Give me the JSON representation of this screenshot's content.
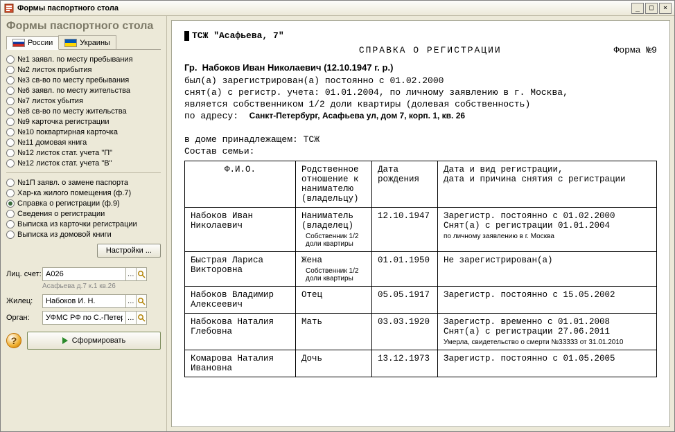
{
  "window": {
    "title": "Формы паспортного стола"
  },
  "sidebar": {
    "heading": "Формы паспортного стола",
    "tabs": [
      {
        "label": "России",
        "flag": "ru",
        "active": true
      },
      {
        "label": "Украины",
        "flag": "ua",
        "active": false
      }
    ],
    "forms1": [
      "№1  заявл. по месту пребывания",
      "№2  листок прибытия",
      "№3  св-во по месту пребывания",
      "№6  заявл. по месту жительства",
      "№7  листок убытия",
      "№8  св-во по месту жительства",
      "№9  карточка регистрации",
      "№10 поквартирная карточка",
      "№11 домовая книга",
      "№12 листок стат. учета \"П\"",
      "№12 листок стат. учета \"В\""
    ],
    "forms2": [
      {
        "label": "№1П  заявл. о замене паспорта",
        "checked": false
      },
      {
        "label": "Хар-ка жилого помещения (ф.7)",
        "checked": false
      },
      {
        "label": "Справка о регистрации (ф.9)",
        "checked": true
      },
      {
        "label": "Сведения о регистрации",
        "checked": false
      },
      {
        "label": "Выписка из карточки регистрации",
        "checked": false
      },
      {
        "label": "Выписка из домовой книги",
        "checked": false
      }
    ],
    "settings_btn": "Настройки ...",
    "fields": {
      "acct_label": "Лиц. счет:",
      "acct_value": "А026",
      "acct_hint": "Асафьева д.7 к.1 кв.26",
      "tenant_label": "Жилец:",
      "tenant_value": "Набоков И. Н.",
      "organ_label": "Орган:",
      "organ_value": "УФМС РФ по С.-Петер"
    },
    "submit_btn": "Сформировать"
  },
  "document": {
    "org": "ТСЖ \"Асафьева, 7\"",
    "title": "СПРАВКА О РЕГИСТРАЦИИ",
    "form_no": "Форма №9",
    "person_prefix": "Гр.",
    "person": "Набоков Иван Николаевич (12.10.1947 г. р.)",
    "line1": "был(а) зарегистрирован(а) постоянно с 01.02.2000",
    "line2": "снят(а) с регистр. учета: 01.01.2004, по личному заявлению в г. Москва,",
    "line3": "является собственником 1/2 доли квартиры (долевая собственность)",
    "addr_label": "по адресу:",
    "addr": "Санкт-Петербург, Асафьева ул, дом 7, корп. 1, кв. 26",
    "belong": "в доме принадлежащем:  ТСЖ",
    "family_label": "Состав семьи:",
    "columns": {
      "fio": "Ф.И.О.",
      "rel": "Родственное отношение к нанимателю (владельцу)",
      "dob": "Дата рождения",
      "reg": "Дата и вид регистрации,\nдата и причина снятия с регистрации"
    },
    "rows": [
      {
        "fio": "Набоков Иван Николаевич",
        "rel": "Наниматель (владелец)",
        "rel_sub": "Собственник 1/2 доли квартиры",
        "dob": "12.10.1947",
        "reg": "Зарегистр. постоянно с 01.02.2000\nСнят(а) с регистрации  01.01.2004",
        "reg_sub": "по личному заявлению в г. Москва"
      },
      {
        "fio": "Быстрая Лариса Викторовна",
        "rel": "Жена",
        "rel_sub": "Собственник 1/2 доли квартиры",
        "dob": "01.01.1950",
        "reg": "Не зарегистрирован(а)",
        "reg_sub": ""
      },
      {
        "fio": "Набоков Владимир Алексеевич",
        "rel": "Отец",
        "rel_sub": "",
        "dob": "05.05.1917",
        "reg": "Зарегистр. постоянно с 15.05.2002",
        "reg_sub": ""
      },
      {
        "fio": "Набокова Наталия Глебовна",
        "rel": "Мать",
        "rel_sub": "",
        "dob": "03.03.1920",
        "reg": "Зарегистр. временно с 01.01.2008\nСнят(а) с регистрации  27.06.2011",
        "reg_sub": "Умерла, свидетельство о смерти №33333 от 31.01.2010"
      },
      {
        "fio": "Комарова Наталия Ивановна",
        "rel": "Дочь",
        "rel_sub": "",
        "dob": "13.12.1973",
        "reg": "Зарегистр. постоянно с 01.05.2005",
        "reg_sub": ""
      }
    ]
  }
}
